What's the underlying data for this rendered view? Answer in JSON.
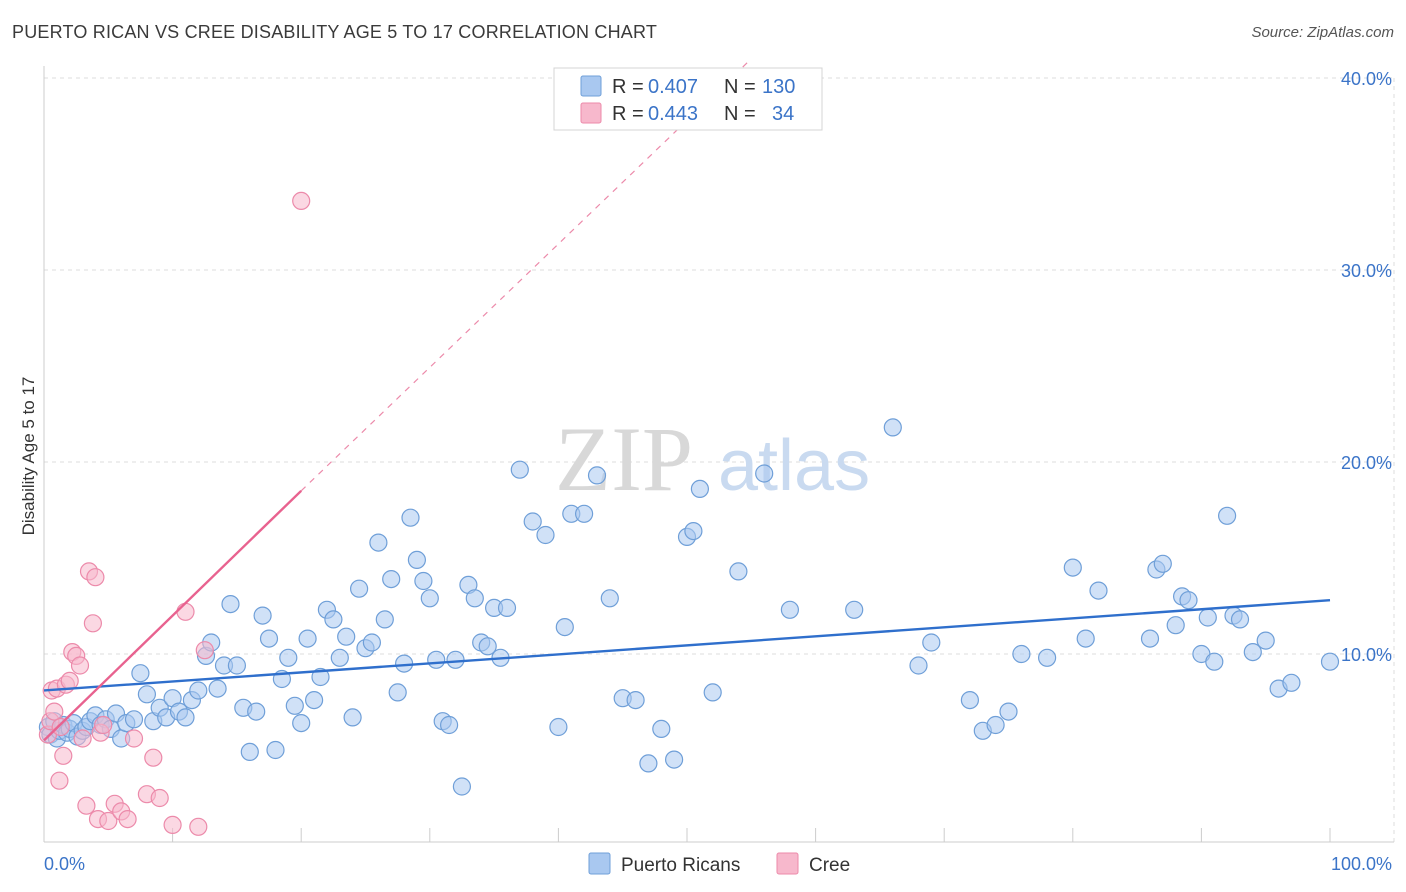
{
  "title": "PUERTO RICAN VS CREE DISABILITY AGE 5 TO 17 CORRELATION CHART",
  "source": "Source: ZipAtlas.com",
  "watermark": {
    "zip": "ZIP",
    "atlas": "atlas"
  },
  "colors": {
    "blue_fill": "#a9c8f0",
    "blue_stroke": "#6f9fd8",
    "blue_line": "#2f6fcc",
    "pink_fill": "#f7b8cc",
    "pink_stroke": "#ec8aaa",
    "pink_line": "#e8628f",
    "grid": "#dddddd",
    "tick": "#3b74c8"
  },
  "legend": {
    "rows": [
      {
        "r_label": "R = ",
        "r_value": "0.407",
        "n_label": "N = ",
        "n_value": "130"
      },
      {
        "r_label": "R = ",
        "r_value": "0.443",
        "n_label": "N = ",
        "n_value": "34"
      }
    ]
  },
  "chart_data": {
    "type": "scatter",
    "title": "PUERTO RICAN VS CREE DISABILITY AGE 5 TO 17 CORRELATION CHART",
    "xlabel": "",
    "ylabel": "Disability Age 5 to 17",
    "xlim": [
      0,
      100
    ],
    "ylim": [
      0,
      41
    ],
    "x_tick_labels": [
      "0.0%",
      "100.0%"
    ],
    "y_ticks": [
      10,
      20,
      30,
      40
    ],
    "y_tick_labels": [
      "10.0%",
      "20.0%",
      "30.0%",
      "40.0%"
    ],
    "grid": true,
    "legend_position": "top-center",
    "series": [
      {
        "name": "Puerto Ricans",
        "color": "#a9c8f0",
        "trend": {
          "x": [
            0,
            100
          ],
          "y": [
            8.1,
            12.8
          ]
        },
        "x": [
          0.3,
          0.5,
          0.8,
          1.0,
          1.2,
          1.5,
          1.8,
          2.0,
          2.3,
          2.6,
          3.0,
          3.3,
          3.6,
          4.0,
          4.4,
          4.8,
          5.2,
          5.6,
          6.0,
          6.4,
          7.0,
          7.5,
          8.0,
          8.5,
          9.0,
          9.5,
          10.0,
          10.5,
          11.0,
          11.5,
          12.0,
          12.6,
          13.0,
          13.5,
          14.0,
          14.5,
          15.0,
          15.5,
          16.0,
          16.5,
          17.0,
          17.5,
          18.0,
          18.5,
          19.0,
          19.5,
          20.0,
          20.5,
          21.0,
          21.5,
          22.0,
          22.5,
          23.0,
          23.5,
          24.0,
          24.5,
          25.0,
          25.5,
          26.0,
          26.5,
          27.0,
          27.5,
          28.0,
          28.5,
          29.0,
          29.5,
          30.0,
          30.5,
          31.0,
          31.5,
          32.0,
          32.5,
          33.0,
          33.5,
          34.0,
          34.5,
          35.0,
          35.5,
          36.0,
          37.0,
          38.0,
          39.0,
          40.0,
          40.5,
          41.0,
          42.0,
          43.0,
          44.0,
          45.0,
          46.0,
          47.0,
          48.0,
          49.0,
          50.0,
          50.5,
          51.0,
          52.0,
          54.0,
          56.0,
          58.0,
          63.0,
          66.0,
          68.0,
          69.0,
          72.0,
          73.0,
          74.0,
          75.0,
          76.0,
          78.0,
          80.0,
          81.0,
          82.0,
          86.0,
          86.5,
          87.0,
          88.0,
          88.5,
          89.0,
          90.0,
          90.5,
          91.0,
          92.0,
          92.5,
          93.0,
          94.0,
          95.0,
          96.0,
          97.0,
          100.0
        ],
        "y": [
          6.2,
          5.8,
          6.5,
          5.6,
          6.0,
          6.3,
          5.9,
          6.1,
          6.4,
          5.7,
          6.0,
          6.2,
          6.5,
          6.8,
          6.3,
          6.6,
          6.1,
          6.9,
          5.6,
          6.4,
          6.6,
          9.0,
          7.9,
          6.5,
          7.2,
          6.7,
          7.7,
          7.0,
          6.7,
          7.6,
          8.1,
          9.9,
          10.6,
          8.2,
          9.4,
          12.6,
          9.4,
          7.2,
          4.9,
          7.0,
          12.0,
          10.8,
          5.0,
          8.7,
          9.8,
          7.3,
          6.4,
          10.8,
          7.6,
          8.8,
          12.3,
          11.8,
          9.8,
          10.9,
          6.7,
          13.4,
          10.3,
          10.6,
          15.8,
          11.8,
          13.9,
          8.0,
          9.5,
          17.1,
          14.9,
          13.8,
          12.9,
          9.7,
          6.5,
          6.3,
          9.7,
          3.1,
          13.6,
          12.9,
          10.6,
          10.4,
          12.4,
          9.8,
          12.4,
          19.6,
          16.9,
          16.2,
          6.2,
          11.4,
          17.3,
          17.3,
          19.3,
          12.9,
          7.7,
          7.6,
          4.3,
          6.1,
          4.5,
          16.1,
          16.4,
          18.6,
          8.0,
          14.3,
          19.4,
          12.3,
          12.3,
          21.8,
          9.4,
          10.6,
          7.6,
          6.0,
          6.3,
          7.0,
          10.0,
          9.8,
          14.5,
          10.8,
          13.3,
          10.8,
          14.4,
          14.7,
          11.5,
          13.0,
          12.8,
          10.0,
          11.9,
          9.6,
          17.2,
          12.0,
          11.8,
          10.1,
          10.7,
          8.2,
          8.5,
          9.6
        ],
        "values": [
          6.2,
          5.8,
          6.5,
          5.6,
          6.0,
          6.3,
          5.9,
          6.1,
          6.4,
          5.7,
          6.0,
          6.2,
          6.5,
          6.8,
          6.3,
          6.6,
          6.1,
          6.9,
          5.6,
          6.4,
          6.6,
          9.0,
          7.9,
          6.5,
          7.2,
          6.7,
          7.7,
          7.0,
          6.7,
          7.6,
          8.1,
          9.9,
          10.6,
          8.2,
          9.4,
          12.6,
          9.4,
          7.2,
          4.9,
          7.0,
          12.0,
          10.8,
          5.0,
          8.7,
          9.8,
          7.3,
          6.4,
          10.8,
          7.6,
          8.8,
          12.3,
          11.8,
          9.8,
          10.9,
          6.7,
          13.4,
          10.3,
          10.6,
          15.8,
          11.8,
          13.9,
          8.0,
          9.5,
          17.1,
          14.9,
          13.8,
          12.9,
          9.7,
          6.5,
          6.3,
          9.7,
          3.1,
          13.6,
          12.9,
          10.6,
          10.4,
          12.4,
          9.8,
          12.4,
          19.6,
          16.9,
          16.2,
          6.2,
          11.4,
          17.3,
          17.3,
          19.3,
          12.9,
          7.7,
          7.6,
          4.3,
          6.1,
          4.5,
          16.1,
          16.4,
          18.6,
          8.0,
          14.3,
          19.4,
          12.3,
          12.3,
          21.8,
          9.4,
          10.6,
          7.6,
          6.0,
          6.3,
          7.0,
          10.0,
          9.8,
          14.5,
          10.8,
          13.3,
          10.8,
          14.4,
          14.7,
          11.5,
          13.0,
          12.8,
          10.0,
          11.9,
          9.6,
          17.2,
          12.0,
          11.8,
          10.1,
          10.7,
          8.2,
          8.5,
          9.6
        ]
      },
      {
        "name": "Cree",
        "color": "#f7b8cc",
        "trend": {
          "x": [
            0,
            20
          ],
          "y": [
            5.5,
            18.5
          ]
        },
        "trend_dashed": {
          "x": [
            20,
            55
          ],
          "y": [
            18.5,
            41
          ]
        },
        "x": [
          0.3,
          0.5,
          0.6,
          0.8,
          1.0,
          1.2,
          1.3,
          1.5,
          1.7,
          2.0,
          2.2,
          2.5,
          2.8,
          3.0,
          3.3,
          3.5,
          3.8,
          4.0,
          4.2,
          4.4,
          4.6,
          5.0,
          5.5,
          6.0,
          6.5,
          7.0,
          8.0,
          8.5,
          9.0,
          10.0,
          11.0,
          12.0,
          12.5,
          20.0
        ],
        "y": [
          5.8,
          6.5,
          8.1,
          7.0,
          8.2,
          3.4,
          6.2,
          4.7,
          8.4,
          8.6,
          10.1,
          9.9,
          9.4,
          5.6,
          2.1,
          14.3,
          11.6,
          14.0,
          1.4,
          5.9,
          6.3,
          1.3,
          2.2,
          1.8,
          1.4,
          5.6,
          2.7,
          4.6,
          2.5,
          1.1,
          12.2,
          1.0,
          10.2,
          33.6
        ],
        "values": [
          5.8,
          6.5,
          8.1,
          7.0,
          8.2,
          3.4,
          6.2,
          4.7,
          8.4,
          8.6,
          10.1,
          9.9,
          9.4,
          5.6,
          2.1,
          14.3,
          11.6,
          14.0,
          1.4,
          5.9,
          6.3,
          1.3,
          2.2,
          1.8,
          1.4,
          5.6,
          2.7,
          4.6,
          2.5,
          1.1,
          12.2,
          1.0,
          10.2,
          33.6
        ]
      }
    ]
  }
}
